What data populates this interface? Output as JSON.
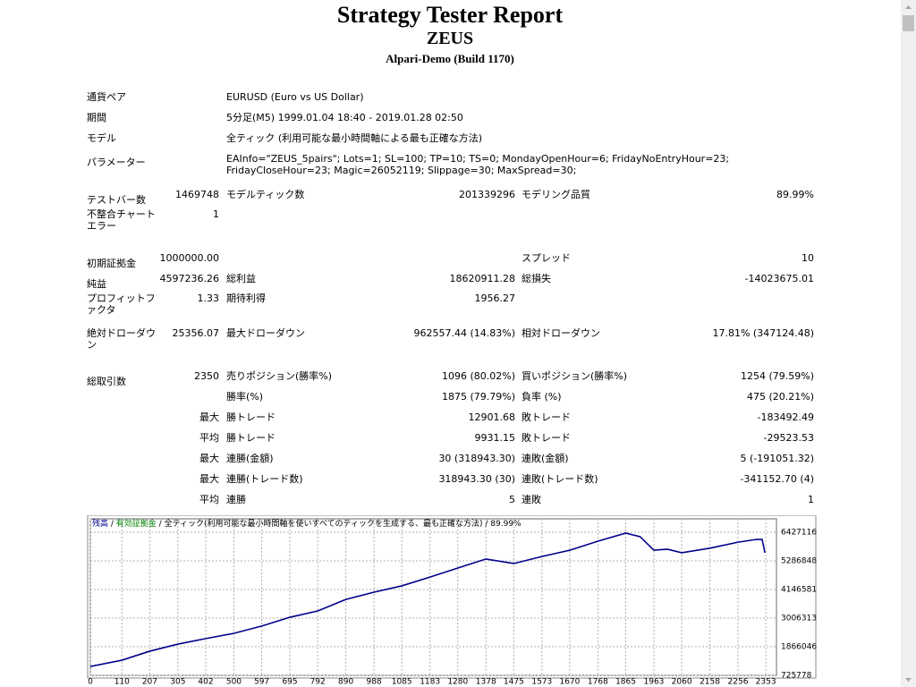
{
  "header": {
    "title": "Strategy Tester Report",
    "subtitle": "ZEUS",
    "build": "Alpari-Demo (Build 1170)"
  },
  "info": [
    {
      "label": "通貨ペア",
      "value": "EURUSD (Euro vs US Dollar)"
    },
    {
      "label": "期間",
      "value": "5分足(M5) 1999.01.04 18:40 - 2019.01.28 02:50"
    },
    {
      "label": "モデル",
      "value": "全ティック (利用可能な最小時間軸による最も正確な方法)"
    },
    {
      "label": "パラメーター",
      "value": "EAInfo=\"ZEUS_5pairs\"; Lots=1; SL=100; TP=10; TS=0; MondayOpenHour=6; FridayNoEntryHour=23; FridayCloseHour=23; Magic=26052119; Slippage=30; MaxSpread=30;"
    }
  ],
  "stats": [
    [
      "テストバー数",
      "1469748",
      "モデルティック数",
      "201339296",
      "モデリング品質",
      "89.99%"
    ],
    [
      "不整合チャートエラー",
      "1",
      null,
      null,
      null,
      null
    ],
    [
      "初期証拠金",
      "1000000.00",
      null,
      null,
      "スプレッド",
      "10"
    ],
    [
      "純益",
      "4597236.26",
      "総利益",
      "18620911.28",
      "総損失",
      "-14023675.01"
    ],
    [
      "プロフィットファクタ",
      "1.33",
      "期待利得",
      "1956.27",
      null,
      null
    ],
    [
      "絶対ドローダウン",
      "25356.07",
      "最大ドローダウン",
      "962557.44 (14.83%)",
      "相対ドローダウン",
      "17.81% (347124.48)"
    ],
    [
      "総取引数",
      "2350",
      "売りポジション(勝率%)",
      "1096 (80.02%)",
      "買いポジション(勝率%)",
      "1254 (79.59%)"
    ],
    [
      null,
      null,
      "勝率(%)",
      "1875 (79.79%)",
      "負率 (%)",
      "475 (20.21%)"
    ],
    [
      null,
      "最大",
      "勝トレード",
      "12901.68",
      "敗トレード",
      "-183492.49"
    ],
    [
      null,
      "平均",
      "勝トレード",
      "9931.15",
      "敗トレード",
      "-29523.53"
    ],
    [
      null,
      "最大",
      "連勝(金額)",
      "30 (318943.30)",
      "連敗(金額)",
      "5 (-191051.32)"
    ],
    [
      null,
      "最大",
      "連勝(トレード数)",
      "318943.30 (30)",
      "連敗(トレード数)",
      "-341152.70 (4)"
    ],
    [
      null,
      "平均",
      "連勝",
      "5",
      "連敗",
      "1"
    ]
  ],
  "chart_data": {
    "type": "line",
    "legend": [
      {
        "name": "残高",
        "color": "#00008b"
      },
      {
        "name": "有効証拠金",
        "color": "#008000"
      },
      {
        "name": "全ティック(利用可能な最小時間軸を使いすべてのティックを生成する、最も正確な方法)",
        "color": "#000000"
      },
      {
        "name": "89.99%",
        "color": "#000000"
      }
    ],
    "x": [
      0,
      110,
      207,
      305,
      402,
      500,
      597,
      695,
      792,
      890,
      988,
      1085,
      1183,
      1280,
      1378,
      1475,
      1573,
      1670,
      1768,
      1865,
      1915,
      1963,
      2010,
      2060,
      2158,
      2256,
      2320,
      2340,
      2350
    ],
    "series": [
      {
        "name": "残高",
        "color": "#00008b",
        "values": [
          1080000,
          1330000,
          1690000,
          1970000,
          2190000,
          2400000,
          2690000,
          3040000,
          3290000,
          3750000,
          4040000,
          4290000,
          4640000,
          5000000,
          5360000,
          5180000,
          5460000,
          5710000,
          6070000,
          6390000,
          6250000,
          5710000,
          5750000,
          5610000,
          5790000,
          6030000,
          6140000,
          6140000,
          5610000
        ]
      }
    ],
    "xlim": [
      0,
      2390
    ],
    "xticks": [
      0,
      110,
      207,
      305,
      402,
      500,
      597,
      695,
      792,
      890,
      988,
      1085,
      1183,
      1280,
      1378,
      1475,
      1573,
      1670,
      1768,
      1865,
      1963,
      2060,
      2158,
      2256,
      2353
    ],
    "ylim": [
      725778,
      6960000
    ],
    "yticks": [
      725778,
      1866046,
      3006313,
      4146581,
      5286848,
      6427116
    ],
    "grid": true
  }
}
